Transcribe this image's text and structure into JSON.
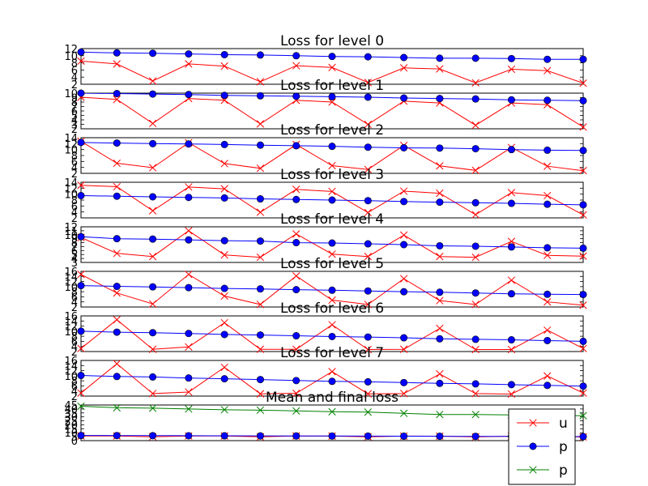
{
  "chart_data": [
    {
      "type": "line",
      "title": "Loss for level 0",
      "x": [
        0,
        1,
        2,
        3,
        4,
        5,
        6,
        7,
        8,
        9,
        10,
        11,
        12,
        13,
        14
      ],
      "ylim": [
        2,
        12
      ],
      "yticks": [
        "2",
        "4",
        "6",
        "8",
        "10",
        "12"
      ],
      "series": [
        {
          "key": "u",
          "color": "#ff0000",
          "marker": "x",
          "values": [
            8.5,
            7.7,
            2.9,
            7.7,
            7.1,
            2.7,
            7.2,
            6.7,
            2.5,
            6.6,
            6.3,
            2.4,
            6.2,
            5.8,
            2.3
          ]
        },
        {
          "key": "p",
          "color": "#0000ff",
          "marker": "o",
          "values": [
            11.0,
            10.8,
            10.7,
            10.5,
            10.3,
            10.2,
            10.0,
            9.8,
            9.7,
            9.5,
            9.3,
            9.3,
            9.2,
            9.0,
            9.0
          ]
        }
      ]
    },
    {
      "type": "line",
      "title": "Loss for level 1",
      "x": [
        0,
        1,
        2,
        3,
        4,
        5,
        6,
        7,
        8,
        9,
        10,
        11,
        12,
        13,
        14
      ],
      "ylim": [
        2,
        10
      ],
      "yticks": [
        "2",
        "3",
        "4",
        "5",
        "6",
        "7",
        "8",
        "9",
        "10"
      ],
      "series": [
        {
          "key": "u",
          "color": "#ff0000",
          "marker": "x",
          "values": [
            9.1,
            8.6,
            3.2,
            8.8,
            8.4,
            3.1,
            8.4,
            8.0,
            3.0,
            8.2,
            7.8,
            2.8,
            7.8,
            7.4,
            2.4
          ]
        },
        {
          "key": "p",
          "color": "#0000ff",
          "marker": "o",
          "values": [
            10.0,
            9.9,
            9.8,
            9.7,
            9.5,
            9.4,
            9.3,
            9.2,
            9.1,
            8.9,
            8.8,
            8.7,
            8.5,
            8.4,
            8.3
          ]
        }
      ]
    },
    {
      "type": "line",
      "title": "Loss for level 2",
      "x": [
        0,
        1,
        2,
        3,
        4,
        5,
        6,
        7,
        8,
        9,
        10,
        11,
        12,
        13,
        14
      ],
      "ylim": [
        2,
        14
      ],
      "yticks": [
        "2",
        "4",
        "6",
        "8",
        "10",
        "12",
        "14"
      ],
      "series": [
        {
          "key": "u",
          "color": "#ff0000",
          "marker": "x",
          "values": [
            12.8,
            5.4,
            3.9,
            12.3,
            5.3,
            3.7,
            11.7,
            4.6,
            3.3,
            11.4,
            4.5,
            3.0,
            10.7,
            4.4,
            2.9
          ]
        },
        {
          "key": "p",
          "color": "#0000ff",
          "marker": "o",
          "values": [
            12.4,
            12.2,
            12.0,
            11.9,
            11.7,
            11.5,
            11.3,
            11.1,
            10.8,
            10.6,
            10.5,
            10.3,
            10.0,
            9.8,
            9.7
          ]
        }
      ]
    },
    {
      "type": "line",
      "title": "Loss for level 3",
      "x": [
        0,
        1,
        2,
        3,
        4,
        5,
        6,
        7,
        8,
        9,
        10,
        11,
        12,
        13,
        14
      ],
      "ylim": [
        2,
        14
      ],
      "yticks": [
        "2",
        "4",
        "6",
        "8",
        "10",
        "12",
        "14"
      ],
      "series": [
        {
          "key": "u",
          "color": "#ff0000",
          "marker": "x",
          "values": [
            13.0,
            12.5,
            4.4,
            12.4,
            11.8,
            3.9,
            11.6,
            10.9,
            3.8,
            11.0,
            10.3,
            3.1,
            10.5,
            9.5,
            3.0
          ]
        },
        {
          "key": "p",
          "color": "#0000ff",
          "marker": "o",
          "values": [
            9.5,
            9.3,
            9.1,
            8.9,
            8.7,
            8.4,
            8.2,
            8.0,
            7.8,
            7.5,
            7.3,
            7.1,
            6.9,
            6.6,
            6.4
          ]
        }
      ]
    },
    {
      "type": "line",
      "title": "Loss for level 4",
      "x": [
        0,
        1,
        2,
        3,
        4,
        5,
        6,
        7,
        8,
        9,
        10,
        11,
        12,
        13,
        14
      ],
      "ylim": [
        3,
        12
      ],
      "yticks": [
        "3",
        "4",
        "5",
        "6",
        "7",
        "8",
        "9",
        "10",
        "11",
        "12"
      ],
      "series": [
        {
          "key": "u",
          "color": "#ff0000",
          "marker": "x",
          "values": [
            9.3,
            5.3,
            4.5,
            11.0,
            4.9,
            4.3,
            10.2,
            5.1,
            4.5,
            9.9,
            4.5,
            4.3,
            8.3,
            4.8,
            4.6
          ]
        },
        {
          "key": "p",
          "color": "#0000ff",
          "marker": "o",
          "values": [
            9.5,
            9.0,
            8.9,
            8.7,
            8.5,
            8.4,
            8.0,
            7.9,
            7.7,
            7.5,
            7.2,
            7.1,
            6.9,
            6.7,
            6.6
          ]
        }
      ]
    },
    {
      "type": "line",
      "title": "Loss for level 5",
      "x": [
        0,
        1,
        2,
        3,
        4,
        5,
        6,
        7,
        8,
        9,
        10,
        11,
        12,
        13,
        14
      ],
      "ylim": [
        2,
        16
      ],
      "yticks": [
        "2",
        "4",
        "6",
        "8",
        "10",
        "12",
        "14",
        "16"
      ],
      "series": [
        {
          "key": "u",
          "color": "#ff0000",
          "marker": "x",
          "values": [
            14.8,
            7.5,
            3.2,
            14.8,
            6.3,
            3.0,
            14.2,
            4.7,
            3.0,
            13.1,
            4.5,
            3.0,
            12.5,
            4.0,
            2.7
          ]
        },
        {
          "key": "p",
          "color": "#0000ff",
          "marker": "o",
          "values": [
            10.4,
            10.1,
            9.9,
            9.6,
            9.3,
            9.1,
            8.8,
            8.6,
            8.3,
            8.0,
            7.8,
            7.5,
            7.2,
            7.0,
            6.9
          ]
        }
      ]
    },
    {
      "type": "line",
      "title": "Loss for level 6",
      "x": [
        0,
        1,
        2,
        3,
        4,
        5,
        6,
        7,
        8,
        9,
        10,
        11,
        12,
        13,
        14
      ],
      "ylim": [
        2,
        16
      ],
      "yticks": [
        "2",
        "4",
        "6",
        "8",
        "10",
        "12",
        "14",
        "16"
      ],
      "series": [
        {
          "key": "u",
          "color": "#ff0000",
          "marker": "x",
          "values": [
            3.2,
            14.5,
            2.9,
            3.8,
            13.3,
            2.9,
            2.9,
            12.5,
            2.8,
            2.9,
            11.1,
            2.8,
            2.8,
            10.4,
            3.2
          ]
        },
        {
          "key": "p",
          "color": "#0000ff",
          "marker": "o",
          "values": [
            10.0,
            9.6,
            9.4,
            9.1,
            8.7,
            8.5,
            8.2,
            7.9,
            7.7,
            7.4,
            7.0,
            6.8,
            6.6,
            6.3,
            6.0
          ]
        }
      ]
    },
    {
      "type": "line",
      "title": "Loss for level 7",
      "x": [
        0,
        1,
        2,
        3,
        4,
        5,
        6,
        7,
        8,
        9,
        10,
        11,
        12,
        13,
        14
      ],
      "ylim": [
        2,
        16
      ],
      "yticks": [
        "2",
        "4",
        "6",
        "8",
        "10",
        "12",
        "14",
        "16"
      ],
      "series": [
        {
          "key": "u",
          "color": "#ff0000",
          "marker": "x",
          "values": [
            3.2,
            14.7,
            3.0,
            3.6,
            13.3,
            2.9,
            3.1,
            11.6,
            2.9,
            3.0,
            10.7,
            3.0,
            2.8,
            9.9,
            3.2
          ]
        },
        {
          "key": "p",
          "color": "#0000ff",
          "marker": "o",
          "values": [
            10.1,
            9.7,
            9.5,
            9.1,
            8.8,
            8.5,
            8.1,
            7.8,
            7.6,
            7.3,
            7.0,
            6.8,
            6.5,
            6.2,
            5.9
          ]
        }
      ]
    },
    {
      "type": "line",
      "title": "Mean and final loss",
      "x": [
        0,
        1,
        2,
        3,
        4,
        5,
        6,
        7,
        8,
        9,
        10,
        11,
        12,
        13,
        14
      ],
      "ylim": [
        0,
        45
      ],
      "yticks": [
        "0",
        "5",
        "10",
        "15",
        "20",
        "25",
        "30",
        "35",
        "40",
        "45"
      ],
      "series": [
        {
          "key": "u",
          "color": "#ff0000",
          "marker": "x",
          "values": [
            5.9,
            5.9,
            4.9,
            5.9,
            5.8,
            4.8,
            5.8,
            5.7,
            4.8,
            5.7,
            5.6,
            4.7,
            5.6,
            5.5,
            4.6
          ]
        },
        {
          "key": "p",
          "color": "#0000ff",
          "marker": "o",
          "values": [
            6.5,
            6.4,
            6.3,
            6.2,
            6.1,
            6.0,
            5.9,
            5.8,
            5.7,
            5.6,
            5.5,
            5.4,
            5.3,
            5.2,
            5.1
          ]
        },
        {
          "key": "p2",
          "color": "#008000",
          "marker": "x",
          "values": [
            43.5,
            41.5,
            41.0,
            40.0,
            39.0,
            38.5,
            37.5,
            36.5,
            36.0,
            34.5,
            33.0,
            33.0,
            32.5,
            32.0,
            31.5
          ]
        }
      ],
      "legend": {
        "placement": "lower-right",
        "entries": [
          {
            "label": "u",
            "color": "#ff0000",
            "marker": "x"
          },
          {
            "label": "p",
            "color": "#0000ff",
            "marker": "o"
          },
          {
            "label": "p",
            "color": "#008000",
            "marker": "x"
          }
        ]
      }
    }
  ]
}
